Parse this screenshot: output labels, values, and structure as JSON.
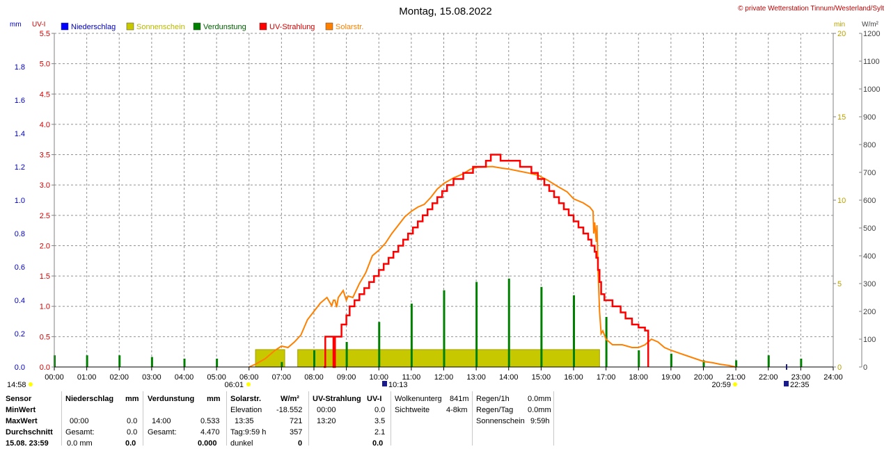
{
  "title": "Montag, 15.08.2022",
  "copyright": "© private Wetterstation Tinnum/Westerland/Sylt",
  "unit_labels": {
    "mm": "mm",
    "uvi": "UV-I",
    "min": "min",
    "wm2": "W/m²"
  },
  "legend": [
    {
      "label": "Niederschlag",
      "color": "#0000ff",
      "text_color": "#0000c0"
    },
    {
      "label": "Sonnenschein",
      "color": "#c8c800",
      "text_color": "#b8b800"
    },
    {
      "label": "Verdunstung",
      "color": "#008000",
      "text_color": "#006000"
    },
    {
      "label": "UV-Strahlung",
      "color": "#ff0000",
      "text_color": "#d00000"
    },
    {
      "label": "Solarstr.",
      "color": "#ff8000",
      "text_color": "#ff8000"
    }
  ],
  "markers": {
    "sunrise": "06:01",
    "uv_max": "10:13",
    "sunset": "20:59",
    "moon": "22:35",
    "left_time": "14:58"
  },
  "chart_data": {
    "type": "line",
    "title": "Montag, 15.08.2022",
    "x_ticks": [
      "00:00",
      "01:00",
      "02:00",
      "03:00",
      "04:00",
      "05:00",
      "06:00",
      "07:00",
      "08:00",
      "09:00",
      "10:00",
      "11:00",
      "12:00",
      "13:00",
      "14:00",
      "15:00",
      "16:00",
      "17:00",
      "18:00",
      "19:00",
      "20:00",
      "21:00",
      "22:00",
      "23:00",
      "24:00"
    ],
    "axes": {
      "mm": {
        "range": [
          0,
          2.0
        ],
        "ticks": [
          "0.0",
          "0.2",
          "0.4",
          "0.6",
          "0.8",
          "1.0",
          "1.2",
          "1.4",
          "1.6",
          "1.8"
        ],
        "color": "#0000c0"
      },
      "uvi": {
        "range": [
          0,
          5.5
        ],
        "ticks": [
          "0.0",
          "0.5",
          "1.0",
          "1.5",
          "2.0",
          "2.5",
          "3.0",
          "3.5",
          "4.0",
          "4.5",
          "5.0",
          "5.5"
        ],
        "color": "#d00000"
      },
      "min": {
        "range": [
          0,
          20
        ],
        "ticks": [
          "0",
          "5",
          "10",
          "15",
          "20"
        ],
        "color": "#b8a000"
      },
      "wm2": {
        "range": [
          0,
          1200
        ],
        "ticks": [
          "0",
          "100",
          "200",
          "300",
          "400",
          "500",
          "600",
          "700",
          "800",
          "900",
          "1000",
          "1100",
          "1200"
        ],
        "color": "#404040"
      }
    },
    "grid": true,
    "sunshine_blocks": [
      {
        "from": 6.2,
        "to": 7.1
      },
      {
        "from": 7.5,
        "to": 16.8
      }
    ],
    "verdunstung": [
      [
        0.0,
        0.07
      ],
      [
        1.0,
        0.07
      ],
      [
        2.0,
        0.07
      ],
      [
        3.0,
        0.06
      ],
      [
        4.0,
        0.05
      ],
      [
        5.0,
        0.05
      ],
      [
        7.0,
        0.03
      ],
      [
        8.0,
        0.1
      ],
      [
        9.0,
        0.15
      ],
      [
        10.0,
        0.27
      ],
      [
        11.0,
        0.38
      ],
      [
        12.0,
        0.46
      ],
      [
        13.0,
        0.51
      ],
      [
        14.0,
        0.53
      ],
      [
        15.0,
        0.48
      ],
      [
        16.0,
        0.43
      ],
      [
        17.0,
        0.3
      ],
      [
        18.0,
        0.1
      ],
      [
        19.0,
        0.08
      ],
      [
        20.0,
        0.04
      ],
      [
        21.0,
        0.04
      ],
      [
        22.0,
        0.07
      ],
      [
        23.0,
        0.05
      ]
    ],
    "uv": [
      [
        8.3,
        0.0
      ],
      [
        8.35,
        0.5
      ],
      [
        8.6,
        0.5
      ],
      [
        8.6,
        0.0
      ],
      [
        8.65,
        0.0
      ],
      [
        8.65,
        0.5
      ],
      [
        8.8,
        0.5
      ],
      [
        8.85,
        0.7
      ],
      [
        9.0,
        0.85
      ],
      [
        9.1,
        1.0
      ],
      [
        9.25,
        1.1
      ],
      [
        9.4,
        1.2
      ],
      [
        9.55,
        1.3
      ],
      [
        9.7,
        1.4
      ],
      [
        9.85,
        1.5
      ],
      [
        10.0,
        1.6
      ],
      [
        10.15,
        1.7
      ],
      [
        10.3,
        1.8
      ],
      [
        10.45,
        1.9
      ],
      [
        10.6,
        2.0
      ],
      [
        10.75,
        2.1
      ],
      [
        10.9,
        2.2
      ],
      [
        11.05,
        2.3
      ],
      [
        11.2,
        2.4
      ],
      [
        11.35,
        2.5
      ],
      [
        11.5,
        2.6
      ],
      [
        11.65,
        2.7
      ],
      [
        11.8,
        2.8
      ],
      [
        11.95,
        2.9
      ],
      [
        12.1,
        3.0
      ],
      [
        12.3,
        3.1
      ],
      [
        12.6,
        3.2
      ],
      [
        12.9,
        3.3
      ],
      [
        13.3,
        3.4
      ],
      [
        13.45,
        3.5
      ],
      [
        13.7,
        3.5
      ],
      [
        13.75,
        3.4
      ],
      [
        14.0,
        3.4
      ],
      [
        14.35,
        3.3
      ],
      [
        14.7,
        3.2
      ],
      [
        14.9,
        3.1
      ],
      [
        15.1,
        3.0
      ],
      [
        15.25,
        2.9
      ],
      [
        15.4,
        2.8
      ],
      [
        15.55,
        2.7
      ],
      [
        15.7,
        2.6
      ],
      [
        15.85,
        2.5
      ],
      [
        16.0,
        2.4
      ],
      [
        16.15,
        2.3
      ],
      [
        16.3,
        2.2
      ],
      [
        16.45,
        2.1
      ],
      [
        16.55,
        2.0
      ],
      [
        16.65,
        1.9
      ],
      [
        16.7,
        1.8
      ],
      [
        16.75,
        1.6
      ],
      [
        16.8,
        1.4
      ],
      [
        16.85,
        1.2
      ],
      [
        16.95,
        1.1
      ],
      [
        17.2,
        1.0
      ],
      [
        17.45,
        0.9
      ],
      [
        17.6,
        0.8
      ],
      [
        17.8,
        0.7
      ],
      [
        18.0,
        0.65
      ],
      [
        18.2,
        0.6
      ],
      [
        18.3,
        0.5
      ],
      [
        18.3,
        0.0
      ]
    ],
    "solar": [
      [
        6.0,
        0
      ],
      [
        6.2,
        10
      ],
      [
        6.5,
        30
      ],
      [
        6.8,
        60
      ],
      [
        7.0,
        75
      ],
      [
        7.2,
        70
      ],
      [
        7.4,
        90
      ],
      [
        7.6,
        115
      ],
      [
        7.8,
        170
      ],
      [
        8.0,
        200
      ],
      [
        8.2,
        230
      ],
      [
        8.4,
        250
      ],
      [
        8.55,
        220
      ],
      [
        8.6,
        240
      ],
      [
        8.65,
        240
      ],
      [
        8.7,
        215
      ],
      [
        8.75,
        250
      ],
      [
        8.9,
        275
      ],
      [
        9.0,
        240
      ],
      [
        9.05,
        255
      ],
      [
        9.2,
        250
      ],
      [
        9.4,
        300
      ],
      [
        9.6,
        340
      ],
      [
        9.8,
        400
      ],
      [
        10.0,
        420
      ],
      [
        10.2,
        445
      ],
      [
        10.4,
        480
      ],
      [
        10.6,
        510
      ],
      [
        10.8,
        540
      ],
      [
        11.0,
        560
      ],
      [
        11.2,
        575
      ],
      [
        11.4,
        585
      ],
      [
        11.6,
        610
      ],
      [
        11.8,
        640
      ],
      [
        12.0,
        660
      ],
      [
        12.3,
        680
      ],
      [
        12.6,
        695
      ],
      [
        12.8,
        710
      ],
      [
        13.0,
        718
      ],
      [
        13.3,
        720
      ],
      [
        13.5,
        721
      ],
      [
        13.8,
        715
      ],
      [
        14.0,
        712
      ],
      [
        14.3,
        705
      ],
      [
        14.6,
        698
      ],
      [
        14.9,
        690
      ],
      [
        15.2,
        672
      ],
      [
        15.5,
        650
      ],
      [
        15.8,
        630
      ],
      [
        16.0,
        605
      ],
      [
        16.3,
        590
      ],
      [
        16.5,
        575
      ],
      [
        16.6,
        560
      ],
      [
        16.62,
        480
      ],
      [
        16.65,
        520
      ],
      [
        16.7,
        450
      ],
      [
        16.72,
        510
      ],
      [
        16.75,
        360
      ],
      [
        16.8,
        200
      ],
      [
        16.85,
        120
      ],
      [
        16.9,
        130
      ],
      [
        17.0,
        100
      ],
      [
        17.2,
        80
      ],
      [
        17.5,
        80
      ],
      [
        17.8,
        70
      ],
      [
        18.0,
        70
      ],
      [
        18.2,
        80
      ],
      [
        18.4,
        100
      ],
      [
        18.6,
        90
      ],
      [
        18.8,
        70
      ],
      [
        19.0,
        60
      ],
      [
        19.5,
        40
      ],
      [
        20.0,
        20
      ],
      [
        20.3,
        15
      ],
      [
        20.5,
        10
      ],
      [
        20.8,
        5
      ],
      [
        21.0,
        0
      ]
    ]
  },
  "table": {
    "col1": {
      "header": "Sensor",
      "rows": [
        "MinWert",
        "MaxWert",
        "Durchschnitt"
      ],
      "footer": "15.08. 23:59"
    },
    "niederschlag": {
      "header": "Niederschlag",
      "unit": "mm",
      "max_time": "00:00",
      "max_val": "0.0",
      "min_val": "",
      "gesamt_label": "Gesamt:",
      "gesamt_val": "0.0",
      "foot_left": "0.0 mm",
      "foot_right": "0.0"
    },
    "verdunstung": {
      "header": "Verdunstung",
      "unit": "mm",
      "max_time": "14:00",
      "max_val": "0.533",
      "gesamt_label": "Gesamt:",
      "gesamt_val": "4.470",
      "foot_right": "0.000"
    },
    "solar": {
      "header": "Solarstr.",
      "unit": "W/m²",
      "elev_label": "Elevation",
      "elev_val": "-18.552",
      "max_time": "13:35",
      "max_val": "721",
      "tag_label": "Tag:9:59 h",
      "tag_val": "357",
      "foot_left": "dunkel",
      "foot_right": "0"
    },
    "uv": {
      "header": "UV-Strahlung",
      "unit": "UV-I",
      "min_time": "00:00",
      "min_val": "0.0",
      "max_time": "13:20",
      "max_val": "3.5",
      "avg_val": "2.1",
      "foot_right": "0.0"
    },
    "clouds": {
      "l1": "Wolkenunterg",
      "v1": "841m",
      "l2": "Sichtweite",
      "v2": "4-8km"
    },
    "summary": {
      "l1": "Regen/1h",
      "v1": "0.0mm",
      "l2": "Regen/Tag",
      "v2": "0.0mm",
      "l3": "Sonnenschein",
      "v3": "9:59h"
    }
  }
}
